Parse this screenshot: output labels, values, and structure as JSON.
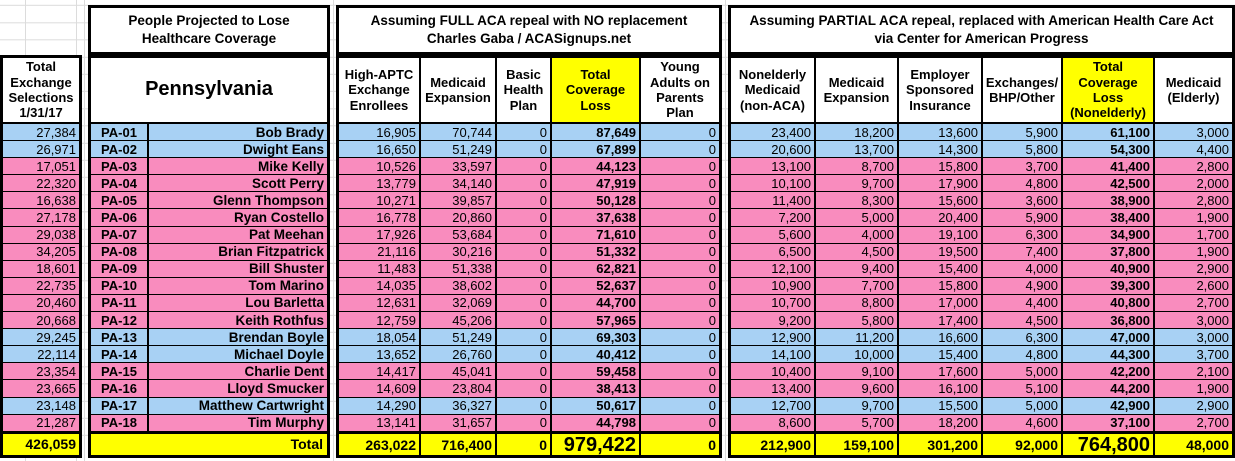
{
  "colors": {
    "row_blue": "#A8D1F4",
    "row_pink": "#F98CBE",
    "highlight_yellow": "#FFFF00"
  },
  "left_column": {
    "header": "Total Exchange Selections 1/31/17",
    "total": "426,059"
  },
  "state_section": {
    "title_line1": "People Projected to Lose",
    "title_line2": "Healthcare Coverage",
    "state_label": "Pennsylvania",
    "total_label": "Total"
  },
  "full_repeal_section": {
    "title_line1": "Assuming FULL ACA repeal with NO replacement",
    "title_line2": "Charles Gaba / ACASignups.net",
    "columns": [
      "High-APTC Exchange Enrollees",
      "Medicaid Expansion",
      "Basic Health Plan",
      "Total Coverage Loss",
      "Young Adults on Parents Plan"
    ],
    "totals": [
      "263,022",
      "716,400",
      "0",
      "979,422",
      "0"
    ]
  },
  "partial_repeal_section": {
    "title_line1": "Assuming PARTIAL ACA repeal, replaced with American Health Care Act",
    "title_line2": "via Center for American Progress",
    "columns": [
      "Nonelderly Medicaid (non-ACA)",
      "Medicaid Expansion",
      "Employer Sponsored Insurance",
      "Exchanges/ BHP/Other",
      "Total Coverage Loss (Nonelderly)",
      "Medicaid (Elderly)"
    ],
    "totals": [
      "212,900",
      "159,100",
      "301,200",
      "92,000",
      "764,800",
      "48,000"
    ]
  },
  "rows": [
    {
      "district": "PA-01",
      "rep": "Bob Brady",
      "row_color": "blue",
      "exchange_selections": "27,384",
      "full_repeal": [
        "16,905",
        "70,744",
        "0",
        "87,649",
        "0"
      ],
      "partial_repeal": [
        "23,400",
        "18,200",
        "13,600",
        "5,900",
        "61,100",
        "3,000"
      ]
    },
    {
      "district": "PA-02",
      "rep": "Dwight Eans",
      "row_color": "blue",
      "exchange_selections": "26,971",
      "full_repeal": [
        "16,650",
        "51,249",
        "0",
        "67,899",
        "0"
      ],
      "partial_repeal": [
        "20,600",
        "13,700",
        "14,300",
        "5,800",
        "54,300",
        "4,400"
      ]
    },
    {
      "district": "PA-03",
      "rep": "Mike Kelly",
      "row_color": "pink",
      "exchange_selections": "17,051",
      "full_repeal": [
        "10,526",
        "33,597",
        "0",
        "44,123",
        "0"
      ],
      "partial_repeal": [
        "13,100",
        "8,700",
        "15,800",
        "3,700",
        "41,400",
        "2,800"
      ]
    },
    {
      "district": "PA-04",
      "rep": "Scott Perry",
      "row_color": "pink",
      "exchange_selections": "22,320",
      "full_repeal": [
        "13,779",
        "34,140",
        "0",
        "47,919",
        "0"
      ],
      "partial_repeal": [
        "10,100",
        "9,700",
        "17,900",
        "4,800",
        "42,500",
        "2,000"
      ]
    },
    {
      "district": "PA-05",
      "rep": "Glenn Thompson",
      "row_color": "pink",
      "exchange_selections": "16,638",
      "full_repeal": [
        "10,271",
        "39,857",
        "0",
        "50,128",
        "0"
      ],
      "partial_repeal": [
        "11,400",
        "8,300",
        "15,600",
        "3,600",
        "38,900",
        "2,800"
      ]
    },
    {
      "district": "PA-06",
      "rep": "Ryan Costello",
      "row_color": "pink",
      "exchange_selections": "27,178",
      "full_repeal": [
        "16,778",
        "20,860",
        "0",
        "37,638",
        "0"
      ],
      "partial_repeal": [
        "7,200",
        "5,000",
        "20,400",
        "5,900",
        "38,400",
        "1,900"
      ]
    },
    {
      "district": "PA-07",
      "rep": "Pat Meehan",
      "row_color": "pink",
      "exchange_selections": "29,038",
      "full_repeal": [
        "17,926",
        "53,684",
        "0",
        "71,610",
        "0"
      ],
      "partial_repeal": [
        "5,600",
        "4,000",
        "19,100",
        "6,300",
        "34,900",
        "1,700"
      ]
    },
    {
      "district": "PA-08",
      "rep": "Brian Fitzpatrick",
      "row_color": "pink",
      "exchange_selections": "34,205",
      "full_repeal": [
        "21,116",
        "30,216",
        "0",
        "51,332",
        "0"
      ],
      "partial_repeal": [
        "6,500",
        "4,500",
        "19,500",
        "7,400",
        "37,800",
        "1,900"
      ]
    },
    {
      "district": "PA-09",
      "rep": "Bill Shuster",
      "row_color": "pink",
      "exchange_selections": "18,601",
      "full_repeal": [
        "11,483",
        "51,338",
        "0",
        "62,821",
        "0"
      ],
      "partial_repeal": [
        "12,100",
        "9,400",
        "15,400",
        "4,000",
        "40,900",
        "2,900"
      ]
    },
    {
      "district": "PA-10",
      "rep": "Tom Marino",
      "row_color": "pink",
      "exchange_selections": "22,735",
      "full_repeal": [
        "14,035",
        "38,602",
        "0",
        "52,637",
        "0"
      ],
      "partial_repeal": [
        "10,900",
        "7,700",
        "15,800",
        "4,900",
        "39,300",
        "2,600"
      ]
    },
    {
      "district": "PA-11",
      "rep": "Lou Barletta",
      "row_color": "pink",
      "exchange_selections": "20,460",
      "full_repeal": [
        "12,631",
        "32,069",
        "0",
        "44,700",
        "0"
      ],
      "partial_repeal": [
        "10,700",
        "8,800",
        "17,000",
        "4,400",
        "40,800",
        "2,700"
      ]
    },
    {
      "district": "PA-12",
      "rep": "Keith Rothfus",
      "row_color": "pink",
      "exchange_selections": "20,668",
      "full_repeal": [
        "12,759",
        "45,206",
        "0",
        "57,965",
        "0"
      ],
      "partial_repeal": [
        "9,200",
        "5,800",
        "17,400",
        "4,500",
        "36,800",
        "3,000"
      ]
    },
    {
      "district": "PA-13",
      "rep": "Brendan Boyle",
      "row_color": "blue",
      "exchange_selections": "29,245",
      "full_repeal": [
        "18,054",
        "51,249",
        "0",
        "69,303",
        "0"
      ],
      "partial_repeal": [
        "12,900",
        "11,200",
        "16,600",
        "6,300",
        "47,000",
        "3,000"
      ]
    },
    {
      "district": "PA-14",
      "rep": "Michael Doyle",
      "row_color": "blue",
      "exchange_selections": "22,114",
      "full_repeal": [
        "13,652",
        "26,760",
        "0",
        "40,412",
        "0"
      ],
      "partial_repeal": [
        "14,100",
        "10,000",
        "15,400",
        "4,800",
        "44,300",
        "3,700"
      ]
    },
    {
      "district": "PA-15",
      "rep": "Charlie Dent",
      "row_color": "pink",
      "exchange_selections": "23,354",
      "full_repeal": [
        "14,417",
        "45,041",
        "0",
        "59,458",
        "0"
      ],
      "partial_repeal": [
        "10,400",
        "9,100",
        "17,600",
        "5,000",
        "42,200",
        "2,100"
      ]
    },
    {
      "district": "PA-16",
      "rep": "Lloyd Smucker",
      "row_color": "pink",
      "exchange_selections": "23,665",
      "full_repeal": [
        "14,609",
        "23,804",
        "0",
        "38,413",
        "0"
      ],
      "partial_repeal": [
        "13,400",
        "9,600",
        "16,100",
        "5,100",
        "44,200",
        "1,900"
      ]
    },
    {
      "district": "PA-17",
      "rep": "Matthew Cartwright",
      "row_color": "blue",
      "exchange_selections": "23,148",
      "full_repeal": [
        "14,290",
        "36,327",
        "0",
        "50,617",
        "0"
      ],
      "partial_repeal": [
        "12,700",
        "9,700",
        "15,500",
        "5,000",
        "42,900",
        "2,900"
      ]
    },
    {
      "district": "PA-18",
      "rep": "Tim Murphy",
      "row_color": "pink",
      "exchange_selections": "21,287",
      "full_repeal": [
        "13,141",
        "31,657",
        "0",
        "44,798",
        "0"
      ],
      "partial_repeal": [
        "8,600",
        "5,700",
        "18,200",
        "4,600",
        "37,100",
        "2,700"
      ]
    }
  ]
}
